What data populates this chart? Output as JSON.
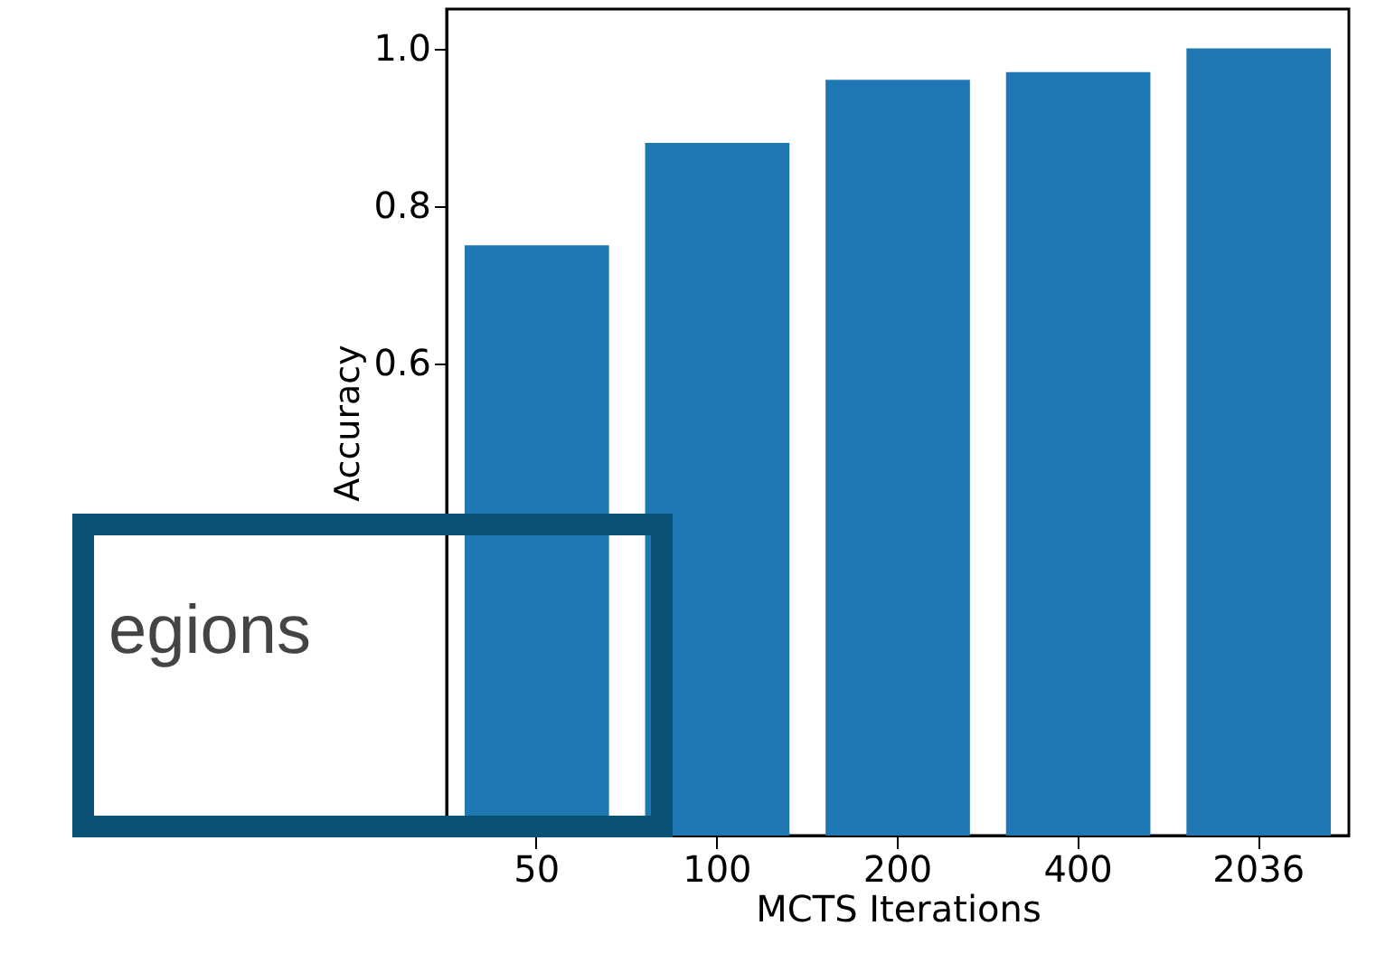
{
  "chart_data": {
    "type": "bar",
    "xlabel": "MCTS Iterations",
    "ylabel": "Accuracy",
    "categories": [
      "50",
      "100",
      "200",
      "400",
      "2036"
    ],
    "values": [
      0.75,
      0.88,
      0.96,
      0.97,
      1.0
    ],
    "color": "#1f77b4",
    "ylim": [
      0,
      1.05
    ],
    "yticks": [
      {
        "value": 0.6,
        "label": "0.6"
      },
      {
        "value": 0.8,
        "label": "0.8"
      },
      {
        "value": 1,
        "label": "1.0"
      }
    ],
    "annotations": [
      "egions"
    ],
    "grid": false
  }
}
